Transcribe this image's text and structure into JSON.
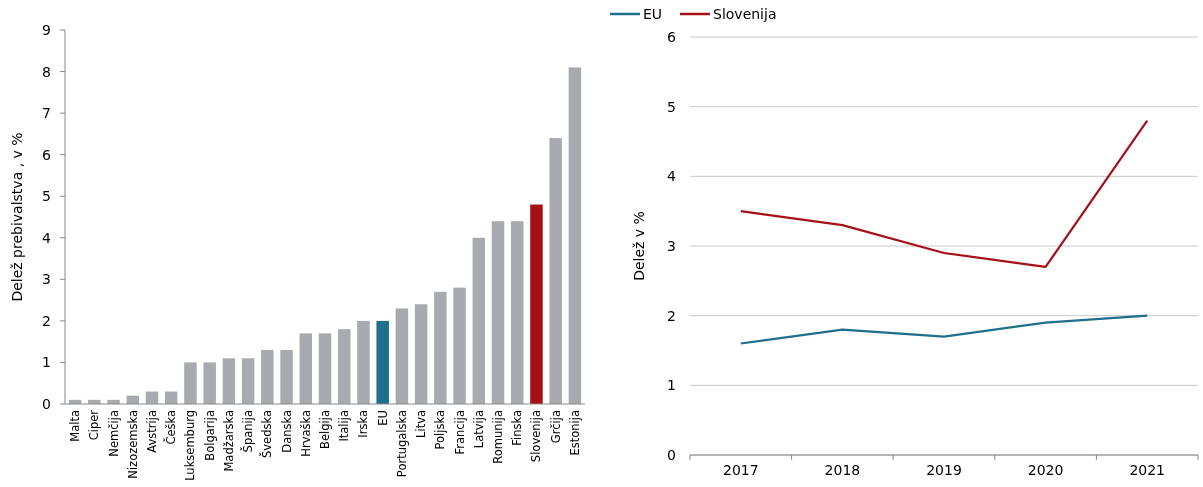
{
  "chart_data": [
    {
      "type": "bar",
      "ylabel": "Delež prebivalstva , v %",
      "categories": [
        "Malta",
        "Ciper",
        "Nemčija",
        "Nizozemska",
        "Avstrija",
        "Češka",
        "Luksemburg",
        "Bolgarija",
        "Madžarska",
        "Španija",
        "Švedska",
        "Danska",
        "Hrvaška",
        "Belgija",
        "Italija",
        "Irska",
        "EU",
        "Portugalska",
        "Litva",
        "Poljska",
        "Francija",
        "Latvija",
        "Romunija",
        "Finska",
        "Slovenija",
        "Grčija",
        "Estonija"
      ],
      "values": [
        0.1,
        0.1,
        0.1,
        0.2,
        0.3,
        0.3,
        1.0,
        1.0,
        1.1,
        1.1,
        1.3,
        1.3,
        1.7,
        1.7,
        1.8,
        2.0,
        2.0,
        2.3,
        2.4,
        2.7,
        2.8,
        4.0,
        4.4,
        4.4,
        4.8,
        6.4,
        8.1
      ],
      "colors": [
        "#a7abaf",
        "#a7abaf",
        "#a7abaf",
        "#a7abaf",
        "#a7abaf",
        "#a7abaf",
        "#a7abaf",
        "#a7abaf",
        "#a7abaf",
        "#a7abaf",
        "#a7abaf",
        "#a7abaf",
        "#a7abaf",
        "#a7abaf",
        "#a7abaf",
        "#a7abaf",
        "#1f6e8c",
        "#a7abaf",
        "#a7abaf",
        "#a7abaf",
        "#a7abaf",
        "#a7abaf",
        "#a7abaf",
        "#a7abaf",
        "#a50f15",
        "#a7abaf",
        "#a7abaf"
      ],
      "ylim": [
        0,
        9
      ],
      "yticks": [
        0,
        1,
        2,
        3,
        4,
        5,
        6,
        7,
        8,
        9
      ],
      "grid": false
    },
    {
      "type": "line",
      "ylabel": "Delež v %",
      "categories": [
        "2017",
        "2018",
        "2019",
        "2020",
        "2021"
      ],
      "series": [
        {
          "name": "EU",
          "color": "#1f6e8c",
          "values": [
            1.6,
            1.8,
            1.7,
            1.9,
            2.0
          ]
        },
        {
          "name": "Slovenija",
          "color": "#a50f15",
          "values": [
            3.5,
            3.3,
            2.9,
            2.7,
            4.8
          ]
        }
      ],
      "ylim": [
        0,
        6
      ],
      "yticks": [
        0,
        1,
        2,
        3,
        4,
        5,
        6
      ],
      "grid": "y",
      "legend": "top left"
    }
  ]
}
